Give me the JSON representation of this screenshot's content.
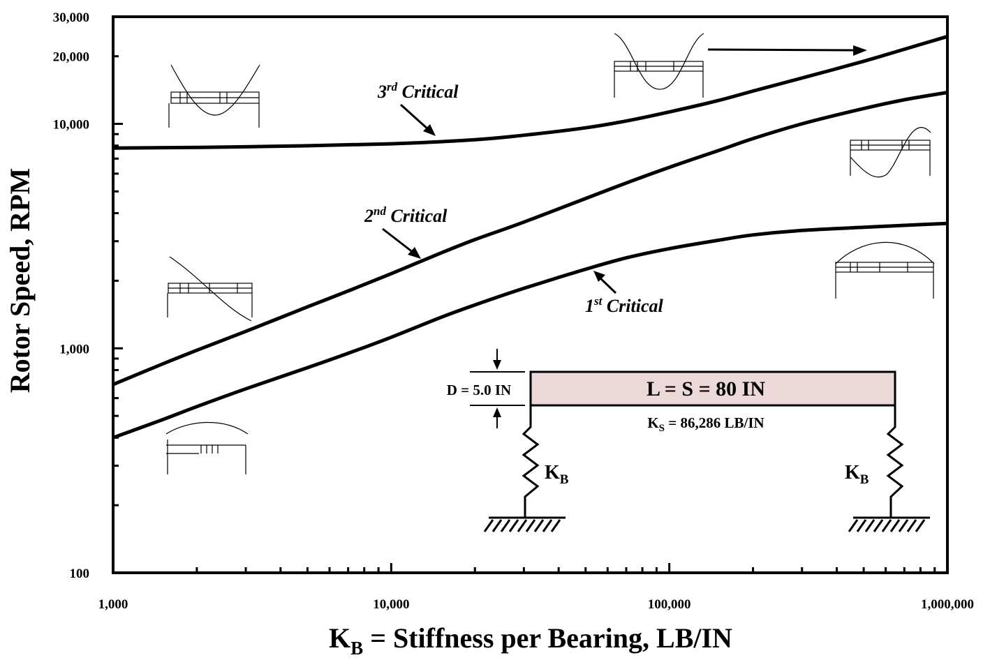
{
  "chart_data": {
    "type": "line",
    "x_scale": "log",
    "y_scale": "log",
    "xlim": [
      1000,
      1000000
    ],
    "ylim": [
      100,
      30000
    ],
    "xlabel": {
      "main": "K",
      "sub": "B",
      "rest": " = Stiffness per Bearing, LB/IN"
    },
    "ylabel": "Rotor Speed, RPM",
    "x_ticks": [
      {
        "value": 1000,
        "label": "1,000"
      },
      {
        "value": 10000,
        "label": "10,000"
      },
      {
        "value": 100000,
        "label": "100,000"
      },
      {
        "value": 1000000,
        "label": "1,000,000"
      }
    ],
    "y_ticks": [
      {
        "value": 100,
        "label": "100"
      },
      {
        "value": 1000,
        "label": "1,000"
      },
      {
        "value": 10000,
        "label": "10,000"
      },
      {
        "value": 20000,
        "label": "20,000"
      },
      {
        "value": 30000,
        "label": "30,000"
      }
    ],
    "series": [
      {
        "name": "1st Critical",
        "label_base": "1",
        "label_sup": "st",
        "label_rest": " Critical",
        "x": [
          1000,
          1500,
          2000,
          3000,
          5000,
          7000,
          10000,
          15000,
          20000,
          30000,
          50000,
          70000,
          100000,
          150000,
          200000,
          300000,
          500000,
          700000,
          1000000
        ],
        "y": [
          400,
          480,
          550,
          660,
          820,
          950,
          1120,
          1370,
          1560,
          1850,
          2250,
          2530,
          2780,
          3030,
          3200,
          3350,
          3460,
          3530,
          3600
        ]
      },
      {
        "name": "2nd Critical",
        "label_base": "2",
        "label_sup": "nd",
        "label_rest": " Critical",
        "x": [
          1000,
          1500,
          2000,
          3000,
          5000,
          7000,
          10000,
          15000,
          20000,
          30000,
          50000,
          70000,
          100000,
          150000,
          200000,
          300000,
          500000,
          700000,
          1000000
        ],
        "y": [
          690,
          850,
          980,
          1190,
          1530,
          1800,
          2150,
          2650,
          3050,
          3650,
          4650,
          5450,
          6400,
          7600,
          8600,
          10000,
          11700,
          12800,
          13800
        ]
      },
      {
        "name": "3rd Critical",
        "label_base": "3",
        "label_sup": "rd",
        "label_rest": " Critical",
        "x": [
          1000,
          3000,
          10000,
          20000,
          30000,
          50000,
          70000,
          100000,
          150000,
          200000,
          300000,
          500000,
          700000,
          1000000
        ],
        "y": [
          7800,
          7900,
          8150,
          8500,
          8900,
          9600,
          10300,
          11300,
          12700,
          14000,
          16000,
          19000,
          21500,
          24500
        ]
      }
    ]
  },
  "schematic": {
    "diameter_label": "D = 5.0 IN",
    "length_label": "L = S = 80 IN",
    "ks_main": "K",
    "ks_sub": "S",
    "ks_rest": " = 86,286 LB/IN",
    "kb_main": "K",
    "kb_sub": "B"
  }
}
